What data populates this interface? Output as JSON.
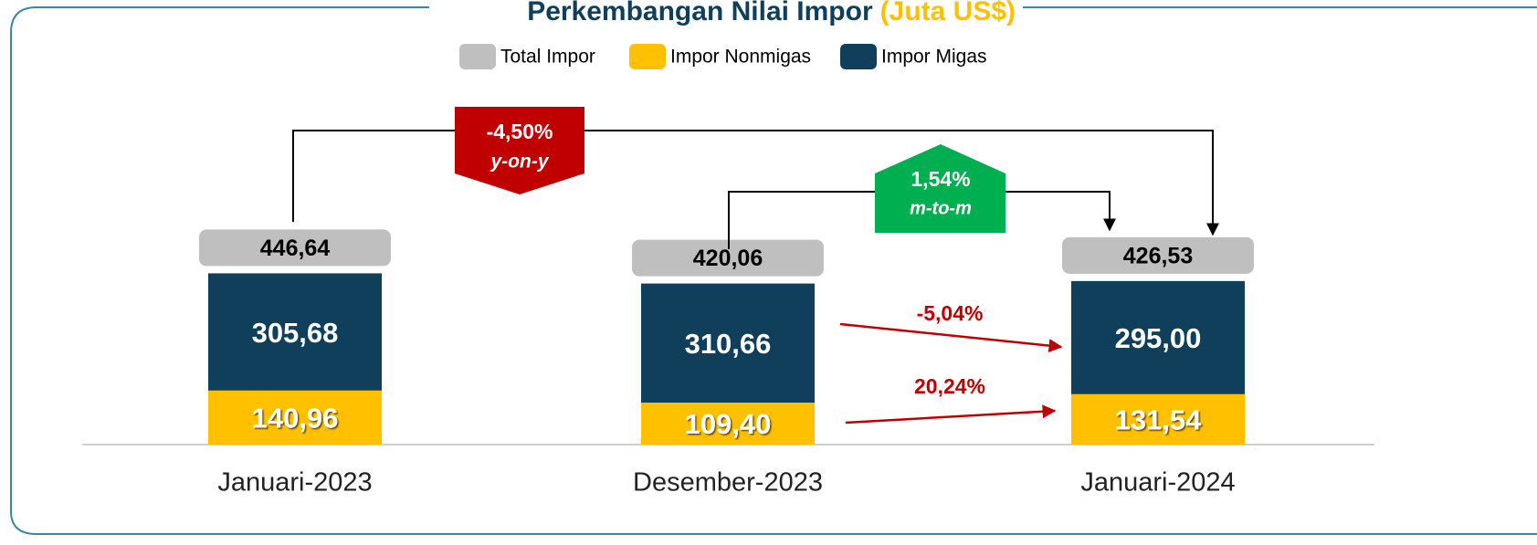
{
  "chart_data": {
    "type": "stacked-bar",
    "title": "Perkembangan Nilai Impor",
    "unit": "(Juta US$)",
    "categories": [
      "Januari-2023",
      "Desember-2023",
      "Januari-2024"
    ],
    "series": [
      {
        "name": "Impor Nonmigas",
        "color": "#FFC000",
        "values": [
          140.96,
          109.4,
          131.54
        ],
        "value_labels": [
          "140,96",
          "109,40",
          "131,54"
        ]
      },
      {
        "name": "Impor Migas",
        "color": "#0F3F5A",
        "values": [
          305.68,
          310.66,
          295.0
        ],
        "value_labels": [
          "305,68",
          "310,66",
          "295,00"
        ]
      }
    ],
    "totals": {
      "name": "Total Impor",
      "color": "#BFBFBF",
      "values": [
        446.64,
        420.06,
        426.53
      ],
      "value_labels": [
        "446,64",
        "420,06",
        "426,53"
      ]
    },
    "annotations": [
      {
        "label": "-4,50%",
        "note": "y-on-y",
        "color": "#C00000"
      },
      {
        "label": "1,54%",
        "note": "m-to-m",
        "color": "#00B050"
      },
      {
        "label": "-5,04%",
        "color": "#C00000"
      },
      {
        "label": "20,24%",
        "color": "#C00000"
      }
    ]
  }
}
